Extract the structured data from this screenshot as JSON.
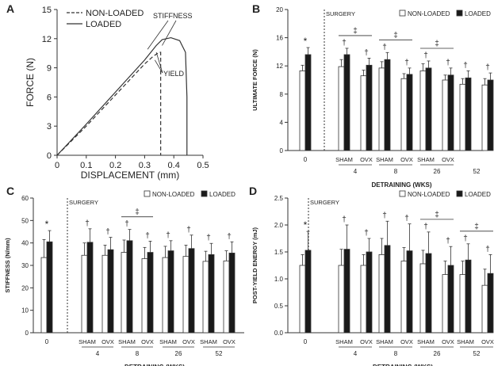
{
  "colors": {
    "loaded": "#1a1a1a",
    "nonloaded": "#ffffff",
    "axis": "#333333",
    "line": "#333333"
  },
  "chart_data": [
    {
      "panel": "A",
      "type": "line",
      "xlabel": "DISPLACEMENT (mm)",
      "ylabel": "FORCE (N)",
      "xlim": [
        0,
        0.5
      ],
      "ylim": [
        0,
        15
      ],
      "xticks": [
        "0",
        "0.1",
        "0.2",
        "0.3",
        "0.4",
        "0.5"
      ],
      "yticks": [
        "0",
        "3",
        "6",
        "9",
        "12",
        "15"
      ],
      "legend": [
        "NON-LOADED",
        "LOADED"
      ],
      "annotations": [
        "STIFFNESS",
        "YIELD"
      ],
      "series": [
        {
          "name": "NON-LOADED",
          "style": "dashed",
          "x": [
            0,
            0.1,
            0.2,
            0.3,
            0.33,
            0.35,
            0.355,
            0.355
          ],
          "y": [
            0,
            3.0,
            6.2,
            9.4,
            10.2,
            10.6,
            10.6,
            0
          ]
        },
        {
          "name": "LOADED",
          "style": "solid",
          "x": [
            0,
            0.1,
            0.2,
            0.3,
            0.34,
            0.36,
            0.39,
            0.42,
            0.44,
            0.445,
            0.445
          ],
          "y": [
            0,
            3.2,
            6.5,
            9.8,
            11.3,
            11.9,
            12.1,
            11.8,
            10.6,
            6.0,
            0
          ]
        }
      ]
    },
    {
      "panel": "B",
      "type": "bar",
      "title": "",
      "ylabel": "ULTIMATE FORCE (N)",
      "xlabel": "DETRAINING (WKS)",
      "ylim": [
        0,
        20
      ],
      "yticks": [
        "0",
        "4",
        "8",
        "12",
        "16",
        "20"
      ],
      "legend": [
        "NON-LOADED",
        "LOADED"
      ],
      "divider_label": "SURGERY",
      "groups": [
        {
          "time": "0",
          "conds": [
            {
              "label": "",
              "nl": 11.3,
              "nle": 0.8,
              "l": 13.6,
              "le": 1.0,
              "mark": "*"
            }
          ]
        },
        {
          "time": "4",
          "bracket": "‡",
          "conds": [
            {
              "label": "SHAM",
              "nl": 11.9,
              "nle": 1.0,
              "l": 13.6,
              "le": 0.9,
              "mark": "†"
            },
            {
              "label": "OVX",
              "nl": 10.6,
              "nle": 0.8,
              "l": 12.1,
              "le": 1.0,
              "mark": "†"
            }
          ]
        },
        {
          "time": "8",
          "bracket": "‡",
          "conds": [
            {
              "label": "SHAM",
              "nl": 11.7,
              "nle": 0.9,
              "l": 12.9,
              "le": 1.0,
              "mark": "†"
            },
            {
              "label": "OVX",
              "nl": 10.2,
              "nle": 0.7,
              "l": 10.8,
              "le": 0.9,
              "mark": "†"
            }
          ]
        },
        {
          "time": "26",
          "bracket": "‡",
          "conds": [
            {
              "label": "SHAM",
              "nl": 11.3,
              "nle": 1.0,
              "l": 11.7,
              "le": 1.0,
              "mark": "†"
            },
            {
              "label": "OVX",
              "nl": 10.0,
              "nle": 0.7,
              "l": 10.7,
              "le": 1.0,
              "mark": "†"
            }
          ]
        },
        {
          "time": "52",
          "conds": [
            {
              "label": "",
              "nl": 9.4,
              "nle": 0.8,
              "l": 10.3,
              "le": 1.0,
              "mark": "†"
            },
            {
              "label": "",
              "nl": 9.3,
              "nle": 0.9,
              "l": 10.0,
              "le": 1.0,
              "mark": "†"
            }
          ]
        }
      ]
    },
    {
      "panel": "C",
      "type": "bar",
      "ylabel": "STIFFNESS (N/mm)",
      "xlabel": "DETRAINING (WKS)",
      "ylim": [
        0,
        60
      ],
      "yticks": [
        "0",
        "10",
        "20",
        "30",
        "40",
        "50",
        "60"
      ],
      "legend": [
        "NON-LOADED",
        "LOADED"
      ],
      "divider_label": "SURGERY",
      "groups": [
        {
          "time": "0",
          "conds": [
            {
              "label": "",
              "nl": 33.5,
              "nle": 8.0,
              "l": 40.5,
              "le": 5.0,
              "mark": "*"
            }
          ]
        },
        {
          "time": "4",
          "conds": [
            {
              "label": "SHAM",
              "nl": 34.5,
              "nle": 5.5,
              "l": 40.3,
              "le": 6.0,
              "mark": "†"
            },
            {
              "label": "OVX",
              "nl": 34.5,
              "nle": 4.5,
              "l": 37.0,
              "le": 5.5,
              "mark": "†"
            }
          ]
        },
        {
          "time": "8",
          "bracket": "‡",
          "conds": [
            {
              "label": "SHAM",
              "nl": 35.8,
              "nle": 5.5,
              "l": 41.0,
              "le": 5.0,
              "mark": "†"
            },
            {
              "label": "OVX",
              "nl": 33.0,
              "nle": 5.0,
              "l": 35.8,
              "le": 5.0,
              "mark": "†"
            }
          ]
        },
        {
          "time": "26",
          "conds": [
            {
              "label": "SHAM",
              "nl": 33.5,
              "nle": 5.0,
              "l": 36.5,
              "le": 4.5,
              "mark": "†"
            },
            {
              "label": "OVX",
              "nl": 34.0,
              "nle": 5.0,
              "l": 37.5,
              "le": 6.0,
              "mark": "†"
            }
          ]
        },
        {
          "time": "52",
          "conds": [
            {
              "label": "SHAM",
              "nl": 31.8,
              "nle": 4.5,
              "l": 34.8,
              "le": 5.0,
              "mark": "†"
            },
            {
              "label": "OVX",
              "nl": 32.0,
              "nle": 4.5,
              "l": 35.5,
              "le": 5.0,
              "mark": "†"
            }
          ]
        }
      ]
    },
    {
      "panel": "D",
      "type": "bar",
      "ylabel": "POST-YIELD ENERGY (mJ)",
      "xlabel": "DETRAINING (WKS)",
      "ylim": [
        0,
        2.5
      ],
      "yticks": [
        "0.0",
        "0.5",
        "1.0",
        "1.5",
        "2.0",
        "2.5"
      ],
      "legend": [
        "NON-LOADED",
        "LOADED"
      ],
      "divider_label": "SURGERY",
      "groups": [
        {
          "time": "0",
          "conds": [
            {
              "label": "",
              "nl": 1.25,
              "nle": 0.2,
              "l": 1.53,
              "le": 0.35,
              "mark": "*"
            }
          ]
        },
        {
          "time": "4",
          "conds": [
            {
              "label": "SHAM",
              "nl": 1.25,
              "nle": 0.3,
              "l": 1.55,
              "le": 0.45,
              "mark": "†"
            },
            {
              "label": "OVX",
              "nl": 1.25,
              "nle": 0.2,
              "l": 1.5,
              "le": 0.25,
              "mark": "†"
            }
          ]
        },
        {
          "time": "8",
          "conds": [
            {
              "label": "SHAM",
              "nl": 1.45,
              "nle": 0.3,
              "l": 1.62,
              "le": 0.45,
              "mark": "†"
            },
            {
              "label": "OVX",
              "nl": 1.33,
              "nle": 0.25,
              "l": 1.52,
              "le": 0.5,
              "mark": "†"
            }
          ]
        },
        {
          "time": "26",
          "bracket": "‡",
          "conds": [
            {
              "label": "SHAM",
              "nl": 1.28,
              "nle": 0.25,
              "l": 1.47,
              "le": 0.4,
              "mark": "†"
            },
            {
              "label": "OVX",
              "nl": 1.08,
              "nle": 0.25,
              "l": 1.25,
              "le": 0.35,
              "mark": "†"
            }
          ]
        },
        {
          "time": "52",
          "bracket": "‡",
          "conds": [
            {
              "label": "SHAM",
              "nl": 1.08,
              "nle": 0.25,
              "l": 1.35,
              "le": 0.3,
              "mark": "†"
            },
            {
              "label": "OVX",
              "nl": 0.88,
              "nle": 0.3,
              "l": 1.1,
              "le": 0.35,
              "mark": "†"
            }
          ]
        }
      ]
    }
  ],
  "panel_labels": [
    "A",
    "B",
    "C",
    "D"
  ]
}
